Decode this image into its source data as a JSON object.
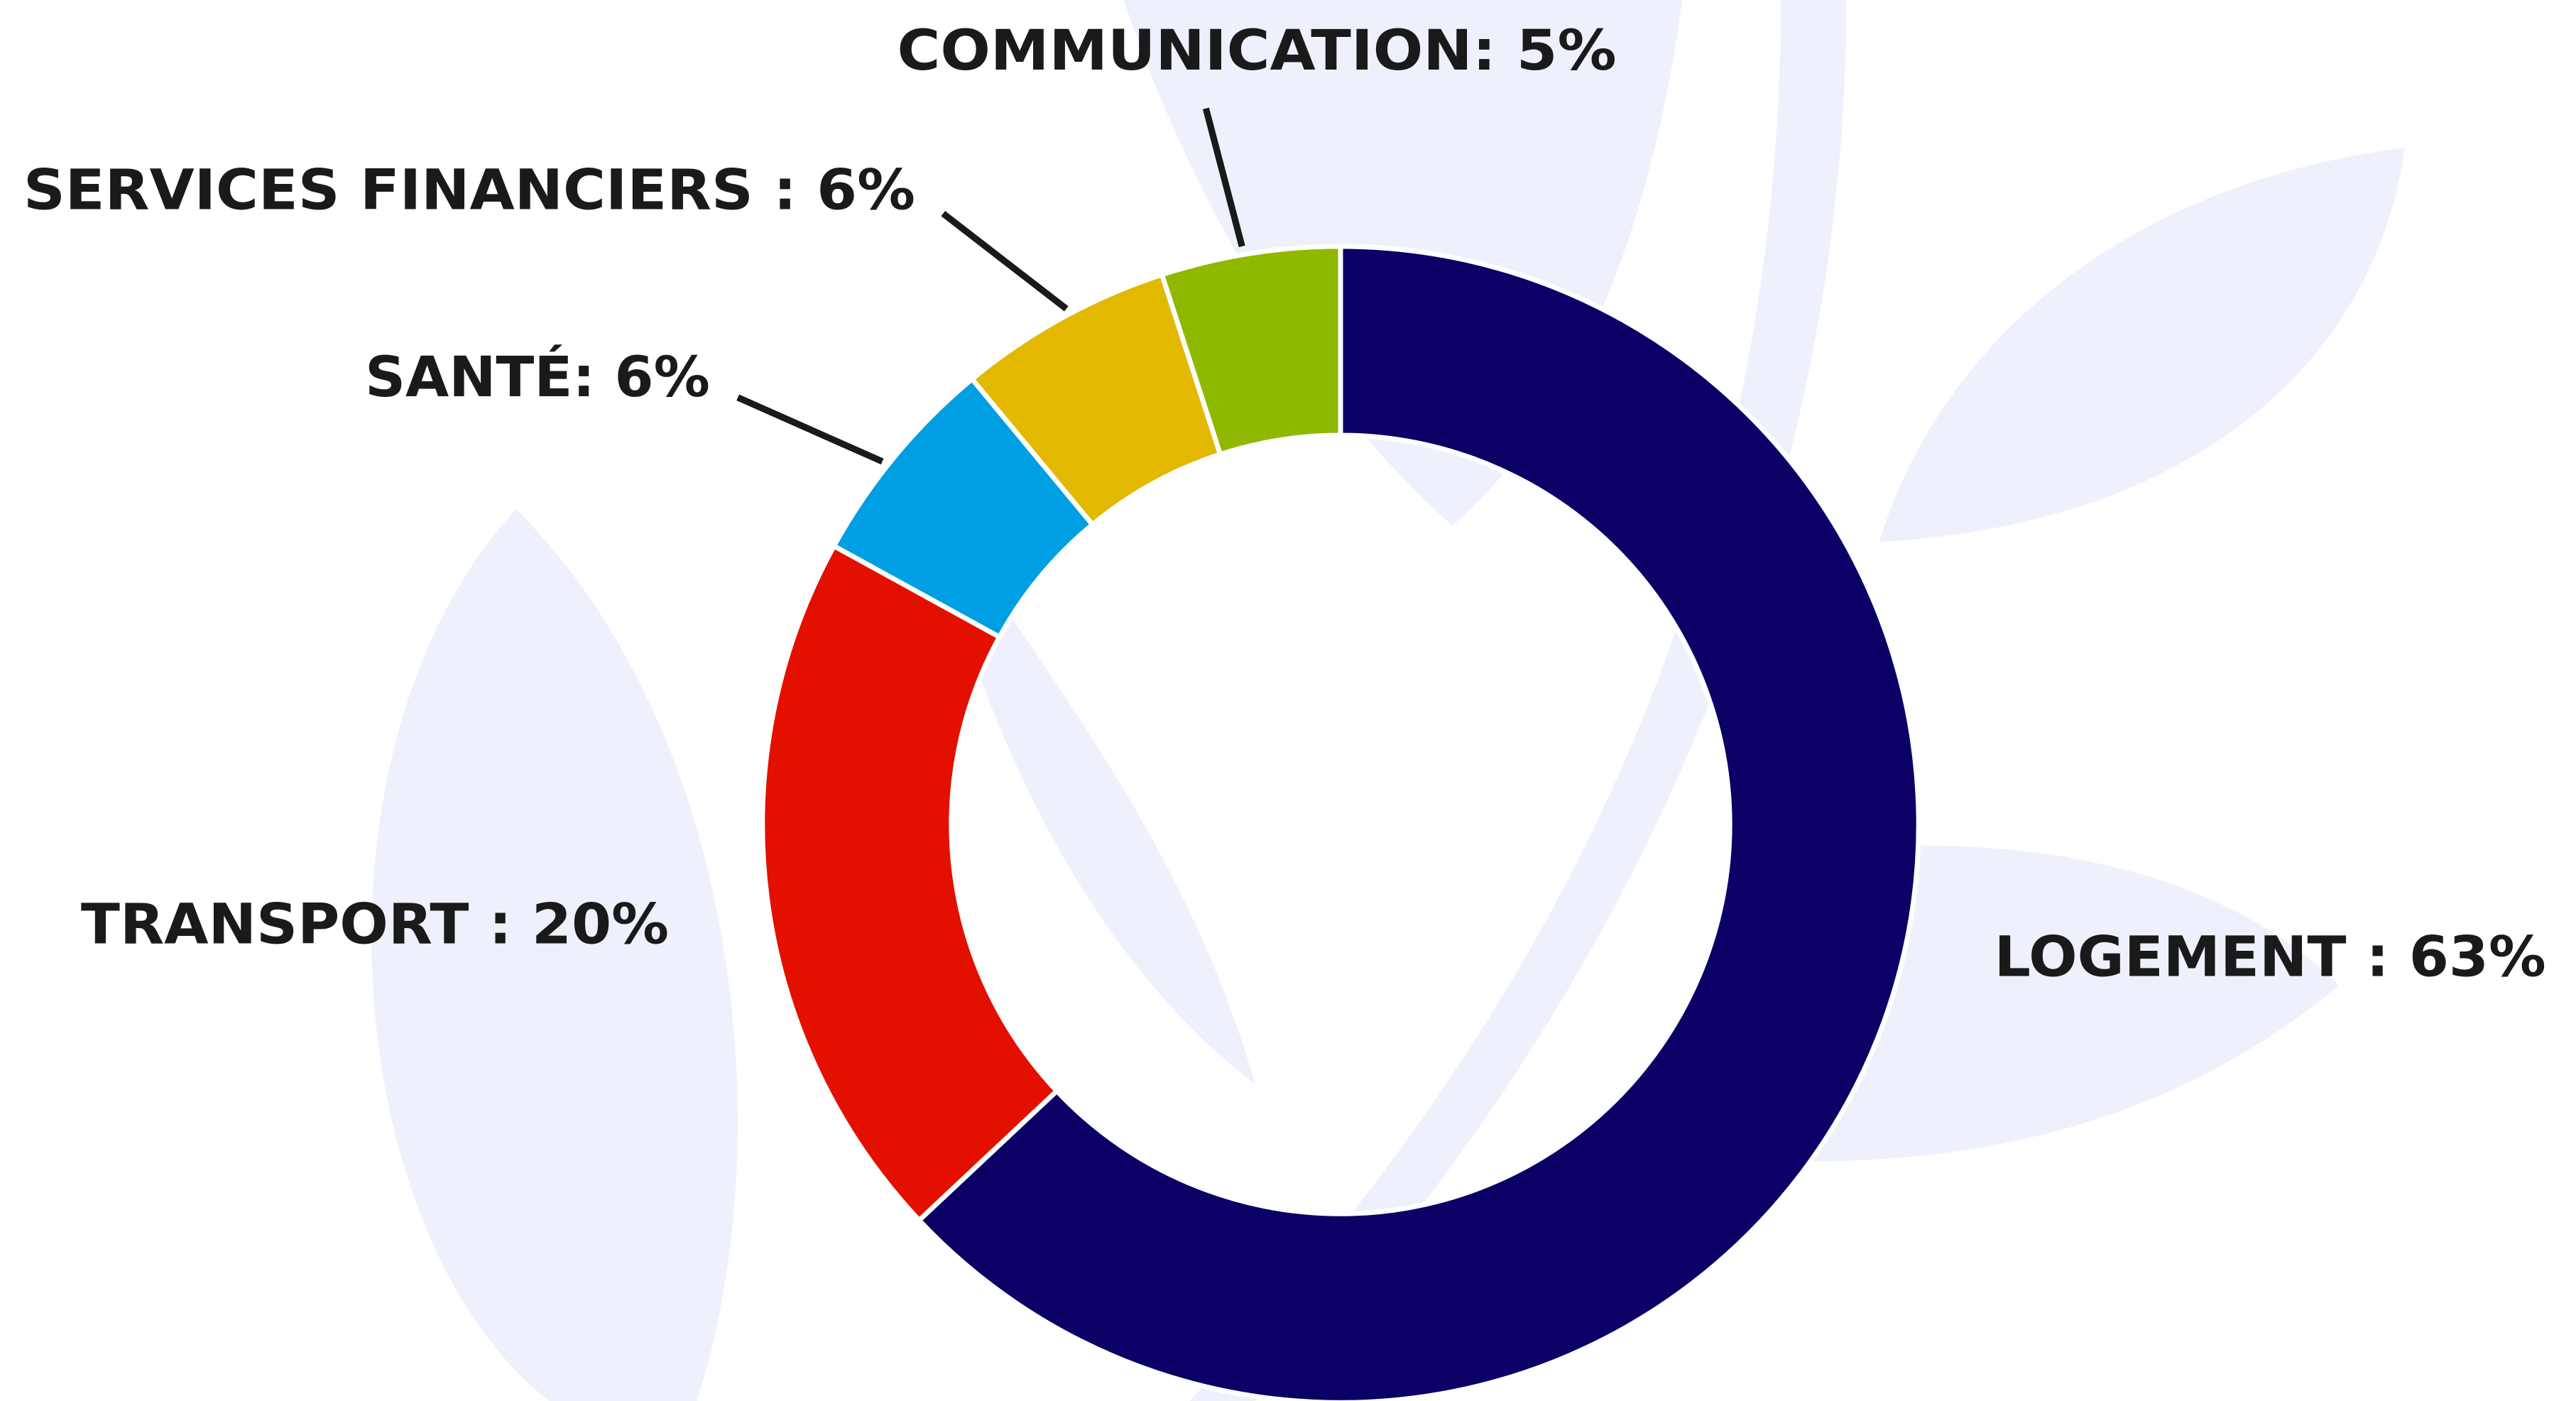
{
  "chart_data": {
    "type": "pie",
    "categories": [
      "LOGEMENT : 63%",
      "TRANSPORT : 20%",
      "SANTÉ: 6%",
      "SERVICES FINANCIERS : 6%",
      "COMMUNICATION: 5%"
    ],
    "values": [
      63,
      20,
      6,
      6,
      5
    ],
    "colors": [
      "#0a0066",
      "#e31000",
      "#009ee3",
      "#e3b800",
      "#8fb800"
    ]
  }
}
